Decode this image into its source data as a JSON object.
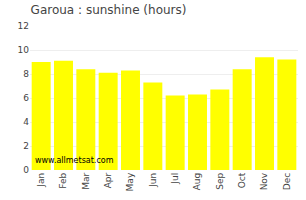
{
  "chart_data": {
    "type": "bar",
    "title": "Garoua : sunshine (hours)",
    "categories": [
      "Jan",
      "Feb",
      "Mar",
      "Apr",
      "May",
      "Jun",
      "Jul",
      "Aug",
      "Sep",
      "Oct",
      "Nov",
      "Dec"
    ],
    "values": [
      9.0,
      9.1,
      8.4,
      8.1,
      8.3,
      7.3,
      6.2,
      6.3,
      6.7,
      8.4,
      9.4,
      9.2
    ],
    "color": "#ffff00",
    "ylim": [
      0,
      12
    ],
    "yticks": [
      0,
      2,
      4,
      6,
      8,
      10,
      12
    ],
    "grid": true,
    "annotations": [
      "www.allmetsat.com"
    ]
  }
}
